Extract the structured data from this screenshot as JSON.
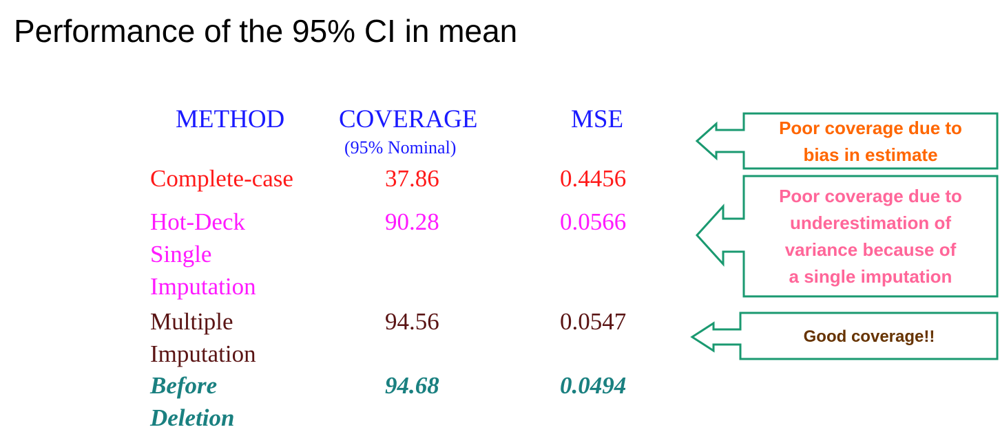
{
  "title": "Performance of the 95% CI in mean",
  "table": {
    "headers": {
      "method": "METHOD",
      "coverage": "COVERAGE",
      "coverage_note": "(95% Nominal)",
      "mse": "MSE"
    },
    "rows": [
      {
        "method_lines": [
          "Complete-case"
        ],
        "coverage": "37.86",
        "mse": "0.4456",
        "color": "#ff1a1a"
      },
      {
        "method_lines": [
          "Hot-Deck",
          "Single",
          "Imputation"
        ],
        "coverage": "90.28",
        "mse": "0.0566",
        "color": "#ff1aff"
      },
      {
        "method_lines": [
          "Multiple",
          "Imputation"
        ],
        "coverage": "94.56",
        "mse": "0.0547",
        "color": "#5a1414"
      },
      {
        "method_lines": [
          "Before",
          "Deletion"
        ],
        "coverage": "94.68",
        "mse": "0.0494",
        "color": "#1a8080"
      }
    ]
  },
  "callouts": [
    {
      "lines": [
        "Poor coverage due to",
        "bias in estimate"
      ],
      "color": "#ff6600",
      "border_color": "#1a9970"
    },
    {
      "lines": [
        "Poor coverage due to",
        "underestimation of",
        "variance because of",
        "a single imputation"
      ],
      "color": "#ff6699",
      "border_color": "#1a9970"
    },
    {
      "lines": [
        "Good coverage!!"
      ],
      "color": "#663300",
      "border_color": "#1a9970"
    }
  ]
}
